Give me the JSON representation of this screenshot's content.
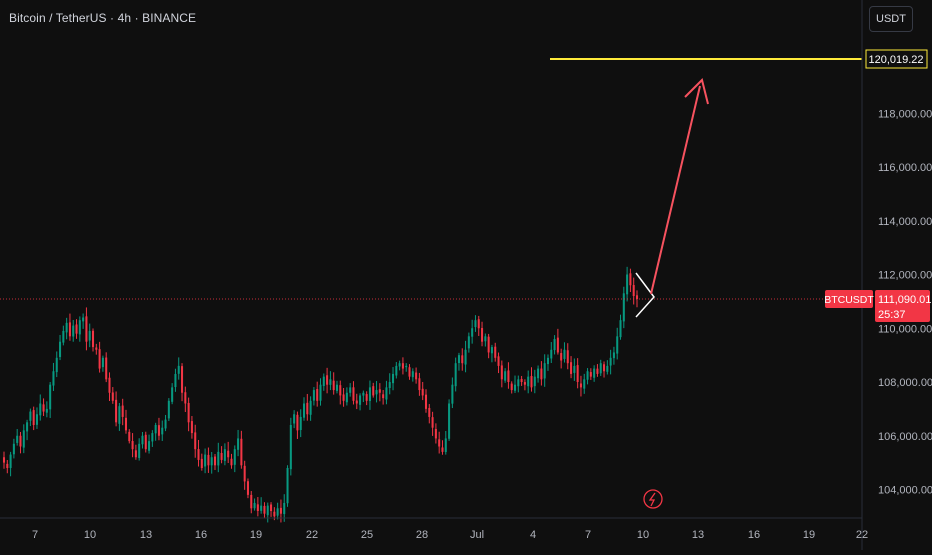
{
  "header": {
    "title": "Bitcoin / TetherUS · 4h · BINANCE",
    "currency_label": "USDT"
  },
  "chart_data": {
    "type": "candlestick",
    "symbol": "BTCUSDT",
    "interval": "4h",
    "exchange": "BINANCE",
    "ylim": [
      102800,
      120900
    ],
    "y_ticks": [
      "104,000.00",
      "106,000.00",
      "108,000.00",
      "110,000.00",
      "112,000.00",
      "114,000.00",
      "116,000.00",
      "118,000.00"
    ],
    "y_tick_values": [
      104000,
      106000,
      108000,
      110000,
      112000,
      114000,
      116000,
      118000
    ],
    "x_ticks": [
      "7",
      "10",
      "13",
      "16",
      "19",
      "22",
      "25",
      "28",
      "Jul",
      "4",
      "7",
      "10",
      "13",
      "16",
      "19",
      "22"
    ],
    "target_price": 120019.22,
    "target_label": "120,019.22",
    "last_price": 111090.01,
    "last_price_label": "111,090.01",
    "countdown": "25:37",
    "symbol_tag": "BTCUSDT",
    "colors": {
      "up": "#089981",
      "down": "#f23645",
      "target_line": "#ffeb3b",
      "arrow": "#f7525f",
      "triangle": "#ffffff",
      "price_tag": "#f23645",
      "background": "#0f0f0f",
      "axis_text": "#b2b5be"
    },
    "closes": [
      105000,
      104800,
      105300,
      105700,
      106000,
      105600,
      106200,
      106500,
      106900,
      106400,
      106800,
      107200,
      106900,
      107000,
      107900,
      108400,
      108900,
      109500,
      109900,
      110200,
      109700,
      110100,
      109800,
      110300,
      110400,
      109500,
      109900,
      109300,
      109200,
      108500,
      108900,
      108100,
      107600,
      107300,
      106500,
      107100,
      106700,
      106200,
      105800,
      105500,
      105200,
      105700,
      106000,
      105500,
      105800,
      106100,
      106400,
      106000,
      106300,
      106600,
      107300,
      107800,
      108300,
      108600,
      107600,
      107200,
      106500,
      106100,
      105500,
      105100,
      104800,
      105300,
      104900,
      105200,
      104900,
      105400,
      105100,
      105500,
      105200,
      104900,
      105500,
      105900,
      104900,
      104300,
      103800,
      103300,
      103500,
      103200,
      103400,
      103100,
      103400,
      103200,
      103000,
      103300,
      103100,
      103500,
      104800,
      106400,
      106800,
      106200,
      106700,
      107200,
      106800,
      107300,
      107700,
      107300,
      107900,
      108200,
      107900,
      108100,
      107700,
      107900,
      107500,
      107300,
      107600,
      107800,
      107300,
      107200,
      107500,
      107600,
      107300,
      107800,
      107500,
      107700,
      107600,
      107400,
      107800,
      108000,
      108300,
      108600,
      108700,
      108500,
      108600,
      108200,
      108400,
      108100,
      107700,
      107500,
      107000,
      106700,
      106300,
      105900,
      105600,
      105400,
      105900,
      107200,
      107900,
      108700,
      109000,
      108700,
      109200,
      109700,
      110000,
      110300,
      110000,
      109500,
      109700,
      109100,
      109300,
      108900,
      108600,
      108100,
      108400,
      108000,
      107700,
      107900,
      108100,
      108000,
      107900,
      108200,
      107800,
      108200,
      108500,
      108100,
      108700,
      108900,
      109200,
      109600,
      109100,
      108800,
      109200,
      108700,
      108300,
      108600,
      108000,
      107800,
      108100,
      108400,
      108200,
      108500,
      108300,
      108700,
      108400,
      108600,
      108900,
      109100,
      109700,
      110300,
      111300,
      112000,
      111600,
      111200,
      111090
    ]
  }
}
